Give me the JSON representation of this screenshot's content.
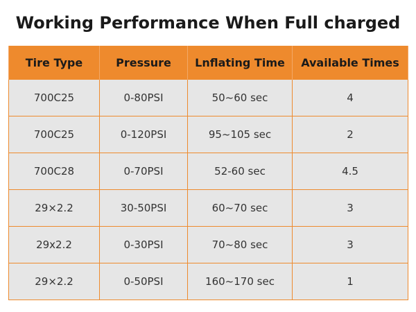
{
  "title": "Working Performance When Full charged",
  "table": {
    "headers": [
      "Tire Type",
      "Pressure",
      "Lnflating Time",
      "Available Times"
    ],
    "rows": [
      [
        "700C25",
        "0-80PSI",
        "50~60 sec",
        "4"
      ],
      [
        "700C25",
        "0-120PSI",
        "95~105 sec",
        "2"
      ],
      [
        "700C28",
        "0-70PSI",
        "52-60 sec",
        "4.5"
      ],
      [
        "29×2.2",
        "30-50PSI",
        "60~70 sec",
        "3"
      ],
      [
        "29x2.2",
        "0-30PSI",
        "70~80 sec",
        "3"
      ],
      [
        "29×2.2",
        "0-50PSI",
        "160~170 sec",
        "1"
      ]
    ]
  },
  "colors": {
    "header_bg": "#ee8a2d",
    "cell_bg": "#e6e6e6",
    "border": "#ee8a2d"
  }
}
